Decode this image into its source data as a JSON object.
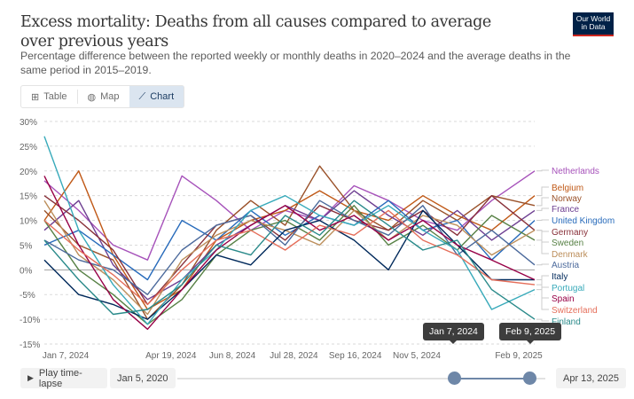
{
  "header": {
    "title": "Excess mortality: Deaths from all causes compared to average over previous years",
    "subtitle": "Percentage difference between the reported weekly or monthly deaths in 2020–2024 and the average deaths in the same period in 2015–2019.",
    "logo": "Our World in Data"
  },
  "tabs": [
    {
      "label": "Table",
      "icon": "table-icon"
    },
    {
      "label": "Map",
      "icon": "globe-icon"
    },
    {
      "label": "Chart",
      "icon": "line-chart-icon",
      "active": true
    }
  ],
  "timeline": {
    "play_label": "Play time-lapse",
    "start": "Jan 5, 2020",
    "end": "Apr 13, 2025",
    "selected_start": "Jan 7, 2024",
    "selected_end": "Feb 9, 2025",
    "handle_color": "#6e87a8"
  },
  "chart_data": {
    "type": "line",
    "ylim": [
      -15,
      30
    ],
    "y_ticks": [
      "30%",
      "25%",
      "20%",
      "15%",
      "10%",
      "5%",
      "0%",
      "-5%",
      "-10%",
      "-15%"
    ],
    "y_tick_values": [
      30,
      25,
      20,
      15,
      10,
      5,
      0,
      -5,
      -10,
      -15
    ],
    "x_tick_labels": [
      "Jan 7, 2024",
      "Apr 19, 2024",
      "Jun 8, 2024",
      "Jul 28, 2024",
      "Sep 16, 2024",
      "Nov 5, 2024",
      "Feb 9, 2025"
    ],
    "x": [
      "2024-01-07",
      "2024-02-04",
      "2024-03-03",
      "2024-03-31",
      "2024-04-28",
      "2024-05-26",
      "2024-06-23",
      "2024-07-21",
      "2024-08-18",
      "2024-09-15",
      "2024-10-13",
      "2024-11-10",
      "2024-12-08",
      "2025-01-05",
      "2025-02-09"
    ],
    "grid": true,
    "legend": "right",
    "series": [
      {
        "name": "Netherlands",
        "color": "#a652ba",
        "values": [
          18,
          12,
          5,
          2,
          19,
          14,
          8,
          12,
          10,
          17,
          14,
          10,
          8,
          14,
          20
        ]
      },
      {
        "name": "Belgium",
        "color": "#c05917",
        "values": [
          10,
          20,
          3,
          -8,
          -4,
          6,
          10,
          12,
          16,
          12,
          10,
          15,
          11,
          8,
          15
        ]
      },
      {
        "name": "Norway",
        "color": "#9a5129",
        "values": [
          12,
          5,
          2,
          -10,
          -3,
          8,
          14,
          9,
          21,
          12,
          8,
          14,
          10,
          15,
          13
        ]
      },
      {
        "name": "France",
        "color": "#6d3e91",
        "values": [
          8,
          14,
          1,
          -6,
          -2,
          5,
          9,
          13,
          10,
          16,
          11,
          7,
          12,
          6,
          12
        ]
      },
      {
        "name": "United Kingdom",
        "color": "#286bbb",
        "values": [
          5,
          8,
          3,
          -2,
          10,
          6,
          12,
          7,
          11,
          9,
          14,
          8,
          10,
          2,
          10
        ]
      },
      {
        "name": "Germany",
        "color": "#883039",
        "values": [
          15,
          10,
          4,
          -7,
          1,
          9,
          11,
          6,
          13,
          10,
          8,
          12,
          7,
          15,
          8
        ]
      },
      {
        "name": "Sweden",
        "color": "#578145",
        "values": [
          10,
          0,
          -5,
          -11,
          -6,
          3,
          8,
          10,
          6,
          13,
          5,
          9,
          4,
          11,
          6
        ]
      },
      {
        "name": "Denmark",
        "color": "#bc8e5a",
        "values": [
          14,
          3,
          -2,
          -9,
          2,
          7,
          10,
          8,
          5,
          12,
          6,
          11,
          9,
          3,
          8
        ]
      },
      {
        "name": "Austria",
        "color": "#4c6a9c",
        "values": [
          6,
          2,
          0,
          -5,
          4,
          9,
          11,
          5,
          14,
          10,
          7,
          13,
          3,
          8,
          1
        ]
      },
      {
        "name": "Italy",
        "color": "#00295b",
        "values": [
          2,
          -5,
          -7,
          -10,
          -4,
          3,
          1,
          8,
          10,
          6,
          0,
          12,
          5,
          -2,
          -2
        ]
      },
      {
        "name": "Portugal",
        "color": "#38aaba",
        "values": [
          27,
          8,
          -3,
          -11,
          -2,
          4,
          12,
          15,
          11,
          9,
          13,
          8,
          4,
          -8,
          -4
        ]
      },
      {
        "name": "Spain",
        "color": "#970046",
        "values": [
          19,
          5,
          -6,
          -12,
          -4,
          4,
          9,
          13,
          8,
          11,
          6,
          10,
          5,
          2,
          -2
        ]
      },
      {
        "name": "Switzerland",
        "color": "#e56e5a",
        "values": [
          10,
          4,
          -1,
          -7,
          0,
          6,
          8,
          4,
          9,
          7,
          12,
          6,
          3,
          -2,
          -3
        ]
      },
      {
        "name": "Finland",
        "color": "#2a8a8a",
        "values": [
          6,
          -2,
          -9,
          -8,
          -3,
          5,
          3,
          11,
          7,
          14,
          9,
          4,
          6,
          -4,
          -10
        ]
      }
    ]
  }
}
